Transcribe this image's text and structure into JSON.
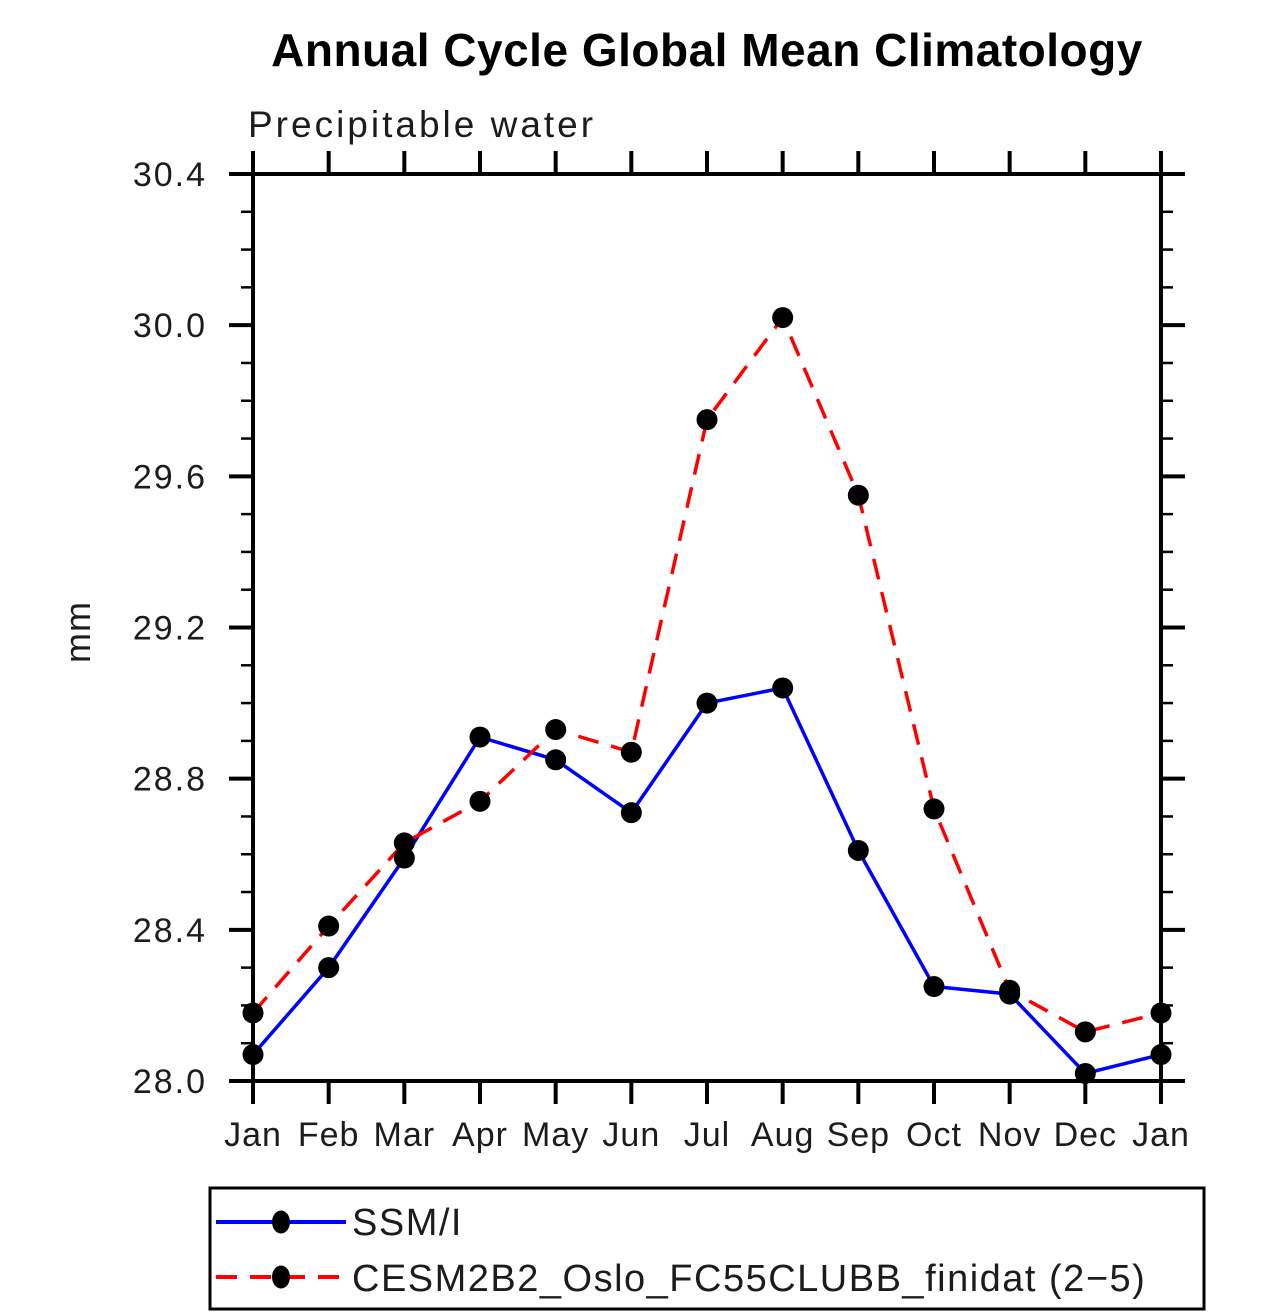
{
  "page": {
    "background_color": "#ffffff",
    "frame_color": "#000000"
  },
  "chart_data": {
    "type": "line",
    "title": "Annual Cycle Global Mean Climatology",
    "subtitle": "Precipitable water",
    "xlabel": "",
    "ylabel": "mm",
    "ylim": [
      28.0,
      30.4
    ],
    "ytick_interval_major": 0.4,
    "ytick_interval_minor": 0.1,
    "ytick_labels": [
      "28.0",
      "28.4",
      "28.8",
      "29.2",
      "29.6",
      "30.0",
      "30.4"
    ],
    "categories": [
      "Jan",
      "Feb",
      "Mar",
      "Apr",
      "May",
      "Jun",
      "Jul",
      "Aug",
      "Sep",
      "Oct",
      "Nov",
      "Dec",
      "Jan"
    ],
    "grid": false,
    "legend_position": "bottom-left-boxed",
    "series": [
      {
        "name": "SSM/I",
        "color": "#0000ff",
        "line_style": "solid",
        "marker": "filled-circle",
        "marker_color": "#000000",
        "values": [
          28.07,
          28.3,
          28.59,
          28.91,
          28.85,
          28.71,
          29.0,
          29.04,
          28.61,
          28.25,
          28.23,
          28.02,
          28.07
        ]
      },
      {
        "name": "CESM2B2_Oslo_FC55CLUBB_finidat (2−5)",
        "color": "#ff0000",
        "line_style": "dashed",
        "marker": "filled-circle",
        "marker_color": "#000000",
        "values": [
          28.18,
          28.41,
          28.63,
          28.74,
          28.93,
          28.87,
          29.75,
          30.02,
          29.55,
          28.72,
          28.24,
          28.13,
          28.18
        ]
      }
    ]
  }
}
